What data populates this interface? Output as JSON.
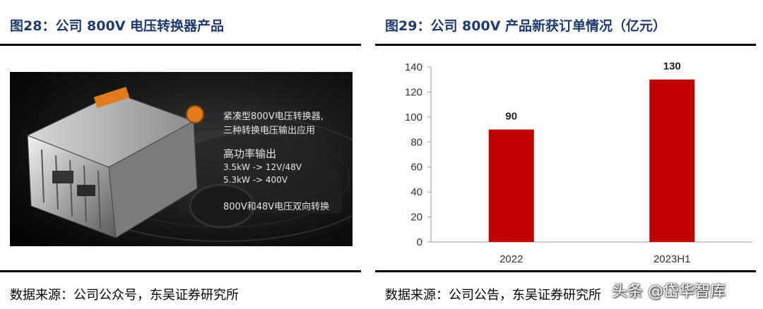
{
  "left_panel": {
    "title": "图28：公司 800V 电压转换器产品",
    "source": "数据来源：公司公众号，东吴证券研究所",
    "photo_lines": [
      "紧凑型800V电压转换器,",
      "三种转换电压输出应用",
      "高功率输出",
      "3.5kW -> 12V/48V",
      "5.3kW -> 400V",
      "800V和48V电压双向转换"
    ]
  },
  "right_panel": {
    "title": "图29：公司 800V 产品新获订单情况（亿元）",
    "source": "数据来源：公司公告，东吴证券研究所"
  },
  "watermark": "头条 @岱华智库",
  "colors": {
    "title": "#1f3a6e",
    "bar": "#c00000",
    "photo_bg": "#0d0d0d"
  },
  "chart_data": {
    "type": "bar",
    "title": "图29：公司 800V 产品新获订单情况（亿元）",
    "categories": [
      "2022",
      "2023H1"
    ],
    "values": [
      90,
      130
    ],
    "data_labels": [
      "90",
      "130"
    ],
    "y_ticks": [
      0,
      20,
      40,
      60,
      80,
      100,
      120,
      140
    ],
    "ylim": [
      0,
      140
    ],
    "xlabel": "",
    "ylabel": "",
    "grid": false,
    "legend": "none"
  }
}
